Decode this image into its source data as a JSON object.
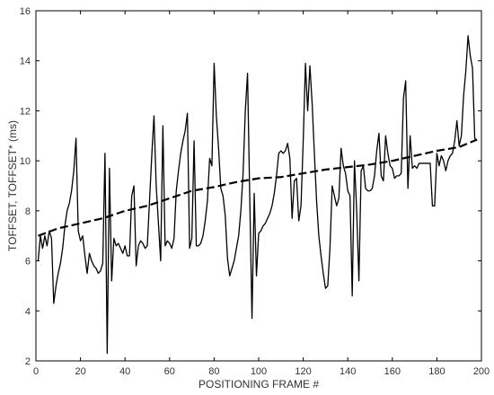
{
  "chart_data": {
    "type": "line",
    "title": "",
    "xlabel": "POSITIONING FRAME #",
    "ylabel": "TOFFSET, TOFFSET* (ms)",
    "xlim": [
      0,
      200
    ],
    "ylim": [
      2,
      16
    ],
    "xticks": [
      0,
      20,
      40,
      60,
      80,
      100,
      120,
      140,
      160,
      180,
      200
    ],
    "yticks": [
      2,
      4,
      6,
      8,
      10,
      12,
      14,
      16
    ],
    "grid": false,
    "legend": "none",
    "series": [
      {
        "style": "solid",
        "color": "#000000",
        "points": [
          [
            1,
            6.0
          ],
          [
            2,
            7.0
          ],
          [
            3,
            6.5
          ],
          [
            4,
            7.0
          ],
          [
            5,
            6.6
          ],
          [
            6,
            7.2
          ],
          [
            7,
            6.9
          ],
          [
            8,
            4.3
          ],
          [
            9,
            5.0
          ],
          [
            10,
            5.5
          ],
          [
            11,
            5.9
          ],
          [
            12,
            6.5
          ],
          [
            13,
            7.4
          ],
          [
            14,
            8.0
          ],
          [
            15,
            8.3
          ],
          [
            16,
            8.8
          ],
          [
            17,
            9.6
          ],
          [
            18,
            10.9
          ],
          [
            19,
            7.2
          ],
          [
            20,
            6.8
          ],
          [
            21,
            7.0
          ],
          [
            22,
            6.2
          ],
          [
            23,
            5.5
          ],
          [
            24,
            6.3
          ],
          [
            25,
            6.0
          ],
          [
            26,
            5.8
          ],
          [
            27,
            5.7
          ],
          [
            28,
            5.5
          ],
          [
            29,
            5.6
          ],
          [
            30,
            5.9
          ],
          [
            31,
            10.3
          ],
          [
            32,
            2.3
          ],
          [
            33,
            9.7
          ],
          [
            34,
            5.2
          ],
          [
            35,
            6.9
          ],
          [
            36,
            6.6
          ],
          [
            37,
            6.7
          ],
          [
            38,
            6.5
          ],
          [
            39,
            6.3
          ],
          [
            40,
            6.6
          ],
          [
            41,
            6.2
          ],
          [
            42,
            6.2
          ],
          [
            43,
            8.6
          ],
          [
            44,
            9.0
          ],
          [
            45,
            5.8
          ],
          [
            46,
            6.6
          ],
          [
            47,
            6.8
          ],
          [
            48,
            6.7
          ],
          [
            49,
            6.5
          ],
          [
            50,
            6.6
          ],
          [
            51,
            8.4
          ],
          [
            52,
            10.2
          ],
          [
            53,
            11.8
          ],
          [
            54,
            9.0
          ],
          [
            55,
            7.5
          ],
          [
            56,
            6.0
          ],
          [
            57,
            11.4
          ],
          [
            58,
            6.6
          ],
          [
            59,
            6.8
          ],
          [
            60,
            6.7
          ],
          [
            61,
            6.5
          ],
          [
            62,
            6.9
          ],
          [
            63,
            8.8
          ],
          [
            64,
            9.6
          ],
          [
            65,
            10.3
          ],
          [
            66,
            10.8
          ],
          [
            67,
            11.2
          ],
          [
            68,
            11.9
          ],
          [
            69,
            6.5
          ],
          [
            70,
            6.9
          ],
          [
            71,
            10.8
          ],
          [
            72,
            6.6
          ],
          [
            73,
            6.6
          ],
          [
            74,
            6.7
          ],
          [
            75,
            7.0
          ],
          [
            76,
            7.6
          ],
          [
            77,
            8.4
          ],
          [
            78,
            10.1
          ],
          [
            79,
            9.8
          ],
          [
            80,
            13.9
          ],
          [
            81,
            11.8
          ],
          [
            82,
            10.5
          ],
          [
            83,
            8.9
          ],
          [
            84,
            8.6
          ],
          [
            85,
            7.8
          ],
          [
            86,
            6.1
          ],
          [
            87,
            5.4
          ],
          [
            88,
            5.7
          ],
          [
            89,
            6.0
          ],
          [
            90,
            6.5
          ],
          [
            91,
            7.0
          ],
          [
            92,
            8.0
          ],
          [
            93,
            9.5
          ],
          [
            94,
            12.0
          ],
          [
            95,
            13.5
          ],
          [
            96,
            8.5
          ],
          [
            97,
            3.7
          ],
          [
            98,
            8.7
          ],
          [
            99,
            5.4
          ],
          [
            100,
            7.1
          ],
          [
            101,
            7.2
          ],
          [
            102,
            7.4
          ],
          [
            103,
            7.5
          ],
          [
            104,
            7.7
          ],
          [
            105,
            7.9
          ],
          [
            106,
            8.2
          ],
          [
            107,
            8.7
          ],
          [
            108,
            9.4
          ],
          [
            109,
            10.3
          ],
          [
            110,
            10.4
          ],
          [
            111,
            10.3
          ],
          [
            112,
            10.4
          ],
          [
            113,
            10.7
          ],
          [
            114,
            10.1
          ],
          [
            115,
            7.7
          ],
          [
            116,
            9.2
          ],
          [
            117,
            9.3
          ],
          [
            118,
            7.6
          ],
          [
            119,
            8.2
          ],
          [
            120,
            10.8
          ],
          [
            121,
            13.9
          ],
          [
            122,
            12.0
          ],
          [
            123,
            13.8
          ],
          [
            124,
            12.3
          ],
          [
            125,
            10.3
          ],
          [
            126,
            8.4
          ],
          [
            127,
            7.0
          ],
          [
            128,
            6.2
          ],
          [
            129,
            5.5
          ],
          [
            130,
            4.9
          ],
          [
            131,
            5.0
          ],
          [
            132,
            6.5
          ],
          [
            133,
            9.0
          ],
          [
            134,
            8.6
          ],
          [
            135,
            8.2
          ],
          [
            136,
            8.5
          ],
          [
            137,
            10.5
          ],
          [
            138,
            9.8
          ],
          [
            139,
            9.5
          ],
          [
            140,
            8.8
          ],
          [
            141,
            8.6
          ],
          [
            142,
            4.6
          ],
          [
            143,
            10.0
          ],
          [
            144,
            8.0
          ],
          [
            145,
            5.2
          ],
          [
            146,
            9.6
          ],
          [
            147,
            9.8
          ],
          [
            148,
            8.9
          ],
          [
            149,
            8.8
          ],
          [
            150,
            8.8
          ],
          [
            151,
            8.9
          ],
          [
            152,
            9.4
          ],
          [
            153,
            10.4
          ],
          [
            154,
            11.1
          ],
          [
            155,
            9.4
          ],
          [
            156,
            9.2
          ],
          [
            157,
            11.0
          ],
          [
            158,
            10.3
          ],
          [
            159,
            9.8
          ],
          [
            160,
            9.7
          ],
          [
            161,
            9.3
          ],
          [
            162,
            9.4
          ],
          [
            163,
            9.4
          ],
          [
            164,
            9.5
          ],
          [
            165,
            12.5
          ],
          [
            166,
            13.2
          ],
          [
            167,
            8.9
          ],
          [
            168,
            11.0
          ],
          [
            169,
            9.7
          ],
          [
            170,
            9.8
          ],
          [
            171,
            9.7
          ],
          [
            172,
            9.9
          ],
          [
            173,
            9.9
          ],
          [
            174,
            9.9
          ],
          [
            175,
            9.9
          ],
          [
            176,
            9.9
          ],
          [
            177,
            9.9
          ],
          [
            178,
            8.2
          ],
          [
            179,
            8.2
          ],
          [
            180,
            10.3
          ],
          [
            181,
            9.8
          ],
          [
            182,
            10.2
          ],
          [
            183,
            10.0
          ],
          [
            184,
            9.6
          ],
          [
            185,
            10.0
          ],
          [
            186,
            10.2
          ],
          [
            187,
            10.3
          ],
          [
            188,
            10.8
          ],
          [
            189,
            11.6
          ],
          [
            190,
            10.6
          ],
          [
            191,
            11.0
          ],
          [
            192,
            12.6
          ],
          [
            193,
            13.6
          ],
          [
            194,
            15.0
          ],
          [
            195,
            14.2
          ],
          [
            196,
            13.7
          ],
          [
            197,
            10.9
          ],
          [
            198,
            10.8
          ]
        ]
      },
      {
        "style": "dashed",
        "color": "#000000",
        "points": [
          [
            1,
            7.0
          ],
          [
            10,
            7.3
          ],
          [
            20,
            7.5
          ],
          [
            30,
            7.7
          ],
          [
            40,
            8.0
          ],
          [
            50,
            8.2
          ],
          [
            60,
            8.5
          ],
          [
            70,
            8.8
          ],
          [
            80,
            8.95
          ],
          [
            90,
            9.15
          ],
          [
            100,
            9.3
          ],
          [
            110,
            9.35
          ],
          [
            120,
            9.5
          ],
          [
            130,
            9.65
          ],
          [
            140,
            9.75
          ],
          [
            150,
            9.85
          ],
          [
            160,
            10.0
          ],
          [
            170,
            10.2
          ],
          [
            180,
            10.4
          ],
          [
            190,
            10.55
          ],
          [
            198,
            10.85
          ]
        ]
      }
    ]
  }
}
